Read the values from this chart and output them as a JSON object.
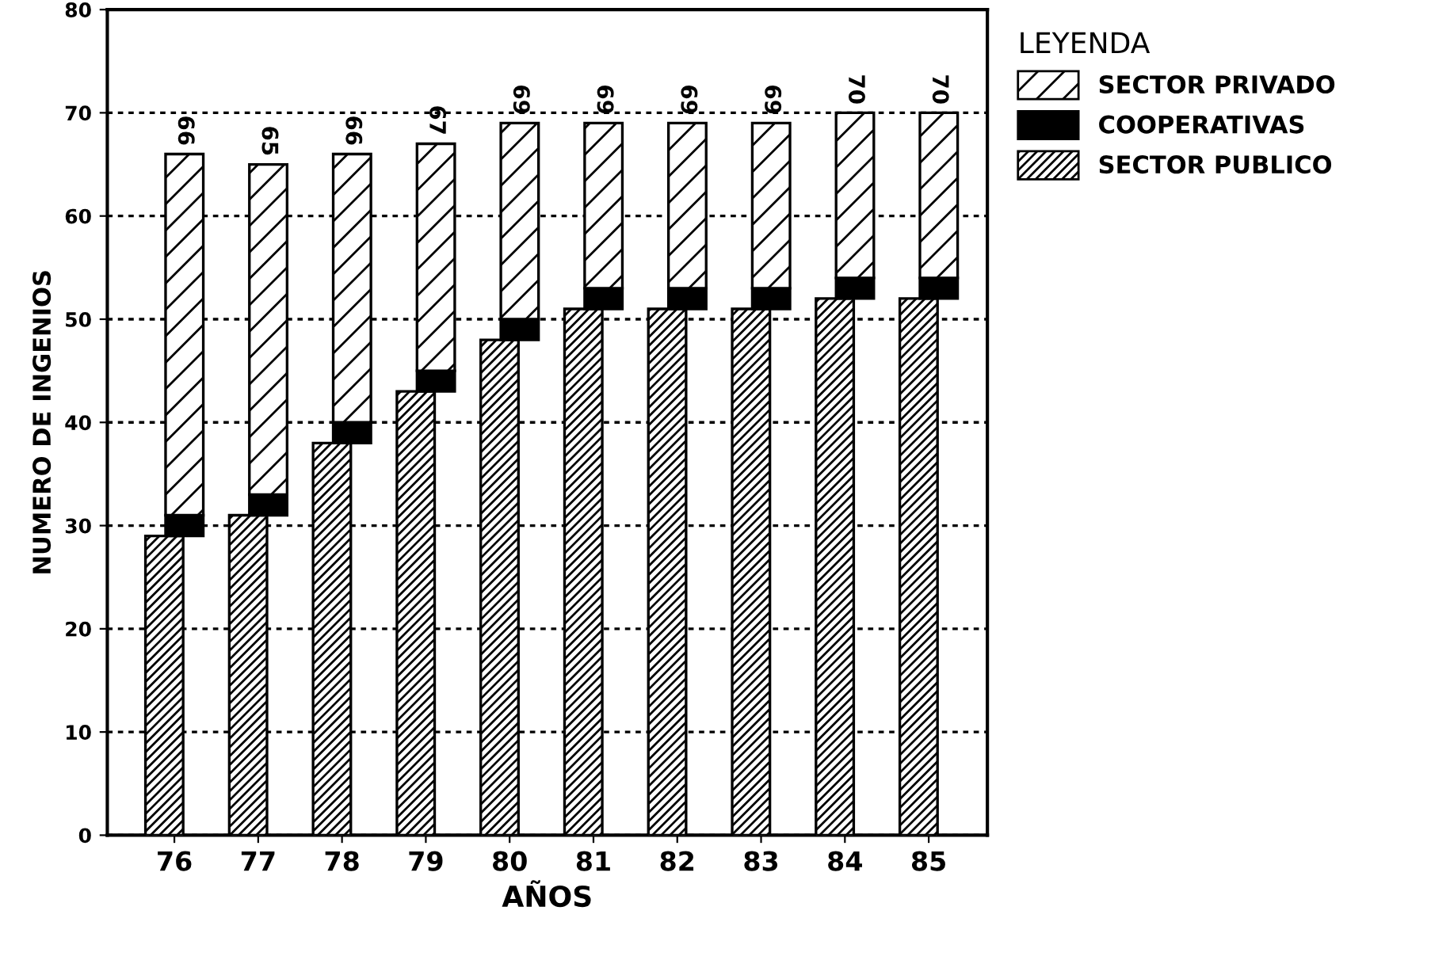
{
  "chart_data": {
    "type": "bar",
    "stacked": true,
    "categories": [
      "76",
      "77",
      "78",
      "79",
      "80",
      "81",
      "82",
      "83",
      "84",
      "85"
    ],
    "series": [
      {
        "name": "SECTOR PUBLICO",
        "color": "#000000",
        "values": [
          29,
          31,
          38,
          43,
          48,
          51,
          51,
          51,
          52,
          52
        ]
      },
      {
        "name": "COOPERATIVAS",
        "color": "#000000",
        "values": [
          2,
          2,
          2,
          2,
          2,
          2,
          2,
          2,
          2,
          2
        ]
      },
      {
        "name": "SECTOR PRIVADO",
        "color": "#000000",
        "values": [
          35,
          32,
          26,
          22,
          19,
          16,
          16,
          16,
          16,
          16
        ]
      }
    ],
    "totals": [
      "66",
      "65",
      "66",
      "67",
      "69",
      "69",
      "69",
      "69",
      "70",
      "70"
    ],
    "xlabel": "AÑOS",
    "ylabel": "NUMERO DE INGENIOS",
    "legend_title": "LEYENDA",
    "ylim": [
      0,
      80
    ],
    "yticks": [
      0,
      10,
      20,
      30,
      40,
      50,
      60,
      70,
      80
    ],
    "grid": "y",
    "legend": "top right"
  }
}
